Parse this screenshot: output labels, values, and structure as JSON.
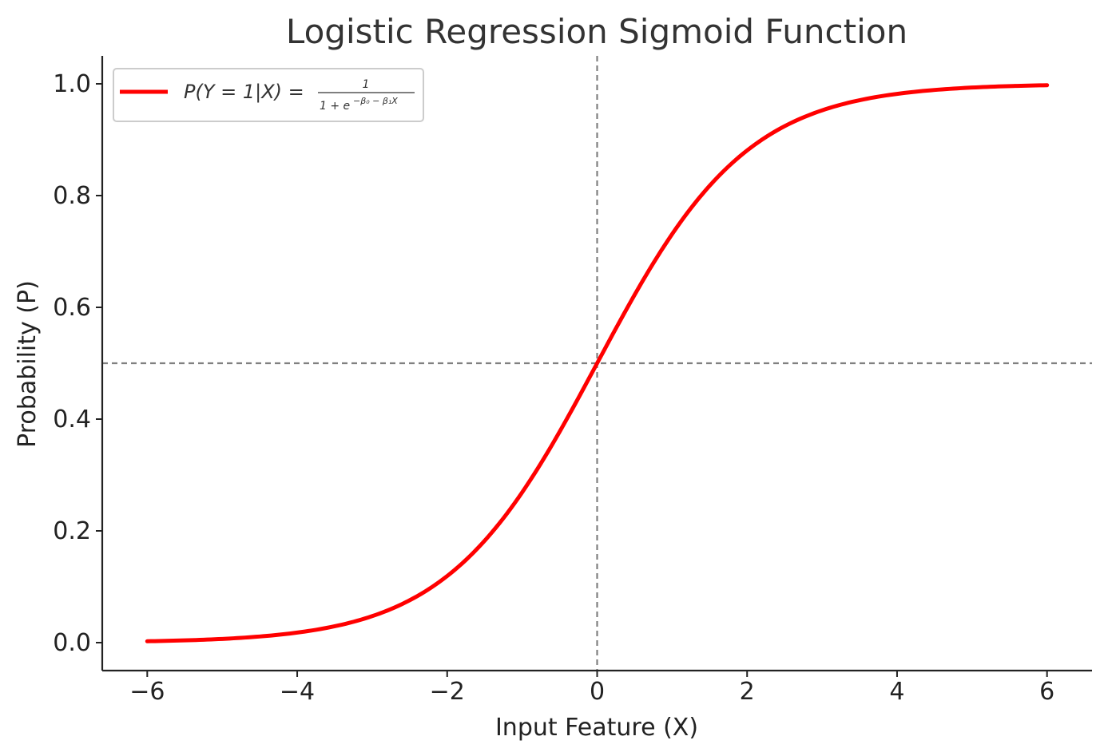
{
  "chart_data": {
    "type": "line",
    "title": "Logistic Regression Sigmoid Function",
    "xlabel": "Input Feature (X)",
    "ylabel": "Probability (P)",
    "xlim": [
      -6.6,
      6.6
    ],
    "ylim": [
      -0.05,
      1.05
    ],
    "x_ticks": [
      -6,
      -4,
      -2,
      0,
      2,
      4,
      6
    ],
    "x_tick_labels": [
      "−6",
      "−4",
      "−2",
      "0",
      "2",
      "4",
      "6"
    ],
    "y_ticks": [
      0.0,
      0.2,
      0.4,
      0.6,
      0.8,
      1.0
    ],
    "y_tick_labels": [
      "0.0",
      "0.2",
      "0.4",
      "0.6",
      "0.8",
      "1.0"
    ],
    "grid": false,
    "legend_position": "top-left",
    "series": [
      {
        "name": "P(Y = 1|X) = 1 / (1 + e^(−β0 − β1X))",
        "color": "#ff0000",
        "x": [
          -6,
          -5.5,
          -5,
          -4.5,
          -4,
          -3.5,
          -3,
          -2.5,
          -2,
          -1.5,
          -1,
          -0.5,
          0,
          0.5,
          1,
          1.5,
          2,
          2.5,
          3,
          3.5,
          4,
          4.5,
          5,
          5.5,
          6
        ],
        "y": [
          0.0025,
          0.0041,
          0.0067,
          0.011,
          0.018,
          0.0293,
          0.0474,
          0.0759,
          0.1192,
          0.1824,
          0.2689,
          0.3775,
          0.5,
          0.6225,
          0.7311,
          0.8176,
          0.8808,
          0.9241,
          0.9526,
          0.9707,
          0.982,
          0.989,
          0.9933,
          0.9959,
          0.9975
        ]
      }
    ],
    "reference_lines": [
      {
        "orientation": "vertical",
        "value": 0,
        "style": "dashed",
        "color": "#808080"
      },
      {
        "orientation": "horizontal",
        "value": 0.5,
        "style": "dashed",
        "color": "#808080"
      }
    ],
    "legend": {
      "lhs": "P(Y = 1|X) =",
      "numerator": "1",
      "denominator_base": "1 + e",
      "denominator_exponent": "−β₀ − β₁X"
    }
  }
}
